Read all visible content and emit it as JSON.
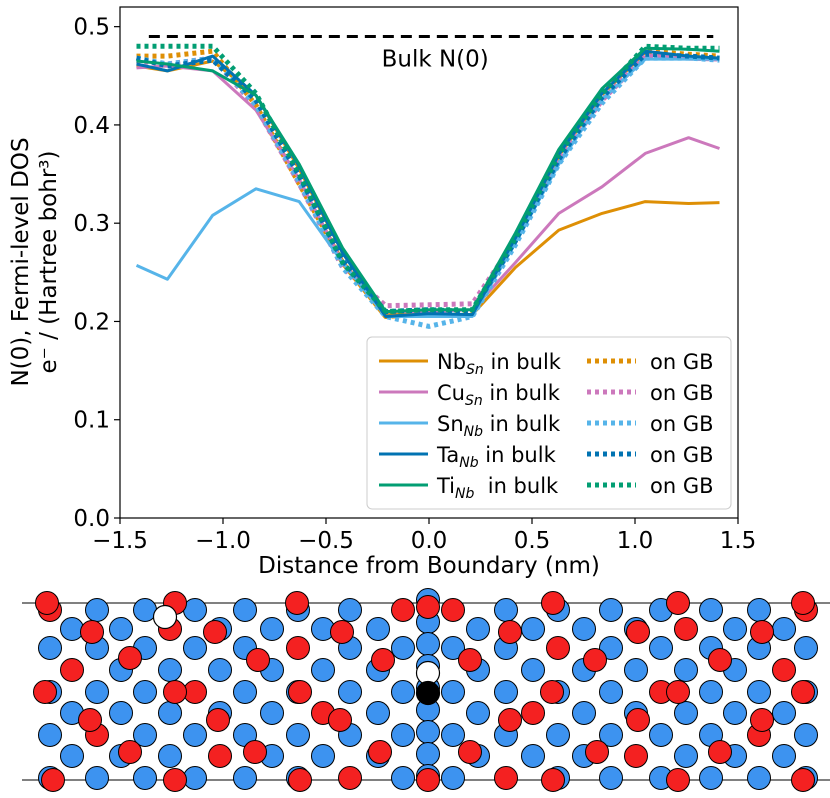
{
  "chart_data": {
    "type": "line",
    "xlabel": "Distance from Boundary (nm)",
    "ylabel_line1": "N(0), Fermi-level DOS",
    "ylabel_line2": "e⁻ / (Hartree bohr³)",
    "xlim": [
      -1.5,
      1.5
    ],
    "ylim": [
      0.0,
      0.52
    ],
    "xticks": [
      -1.5,
      -1.0,
      -0.5,
      0.0,
      0.5,
      1.0,
      1.5
    ],
    "xtick_labels": [
      "−1.5",
      "−1.0",
      "−0.5",
      "0.0",
      "0.5",
      "1.0",
      "1.5"
    ],
    "yticks": [
      0.0,
      0.1,
      0.2,
      0.3,
      0.4,
      0.5
    ],
    "ytick_labels": [
      "0.0",
      "0.1",
      "0.2",
      "0.3",
      "0.4",
      "0.5"
    ],
    "bulk_reference": {
      "label": "Bulk N(0)",
      "y": 0.49,
      "x_range": [
        -1.36,
        1.38
      ],
      "color": "#000000"
    },
    "legend_location": "lower-right",
    "series": [
      {
        "name": "Nb_Sn in bulk",
        "base": "Nb",
        "sub": "Sn",
        "suffix": " in bulk",
        "color": "#de8f05",
        "style": "solid",
        "x": [
          -1.42,
          -1.27,
          -1.05,
          -0.84,
          -0.63,
          -0.42,
          -0.21,
          0.0,
          0.21,
          0.42,
          0.63,
          0.84,
          1.05,
          1.26,
          1.41
        ],
        "y": [
          0.46,
          0.455,
          0.465,
          0.43,
          0.355,
          0.27,
          0.207,
          0.207,
          0.207,
          0.255,
          0.293,
          0.31,
          0.322,
          0.32,
          0.321
        ]
      },
      {
        "name": "Nb_Sn on GB",
        "base": "",
        "sub": "",
        "suffix": "on GB",
        "color": "#de8f05",
        "style": "dotted",
        "x": [
          -1.42,
          -1.27,
          -1.05,
          -0.84,
          -0.63,
          -0.42,
          -0.21,
          0.0,
          0.21,
          0.42,
          0.63,
          0.84,
          1.05,
          1.26,
          1.41
        ],
        "y": [
          0.47,
          0.47,
          0.475,
          0.42,
          0.34,
          0.26,
          0.205,
          0.208,
          0.208,
          0.285,
          0.37,
          0.432,
          0.475,
          0.472,
          0.47
        ]
      },
      {
        "name": "Cu_Sn in bulk",
        "base": "Cu",
        "sub": "Sn",
        "suffix": " in bulk",
        "color": "#cc78bc",
        "style": "solid",
        "x": [
          -1.42,
          -1.27,
          -1.05,
          -0.84,
          -0.63,
          -0.42,
          -0.21,
          0.0,
          0.21,
          0.42,
          0.63,
          0.84,
          1.05,
          1.26,
          1.41
        ],
        "y": [
          0.458,
          0.46,
          0.455,
          0.415,
          0.345,
          0.26,
          0.21,
          0.21,
          0.212,
          0.26,
          0.31,
          0.337,
          0.371,
          0.387,
          0.376
        ]
      },
      {
        "name": "Cu_Sn on GB",
        "base": "",
        "sub": "",
        "suffix": "on GB",
        "color": "#cc78bc",
        "style": "dotted",
        "x": [
          -1.42,
          -1.27,
          -1.05,
          -0.84,
          -0.63,
          -0.42,
          -0.21,
          0.0,
          0.21,
          0.42,
          0.63,
          0.84,
          1.05,
          1.26,
          1.41
        ],
        "y": [
          0.465,
          0.462,
          0.468,
          0.418,
          0.34,
          0.255,
          0.216,
          0.217,
          0.218,
          0.283,
          0.365,
          0.425,
          0.47,
          0.468,
          0.467
        ]
      },
      {
        "name": "Sn_Nb in bulk",
        "base": "Sn",
        "sub": "Nb",
        "suffix": " in bulk",
        "color": "#56b4e9",
        "style": "solid",
        "x": [
          -1.42,
          -1.27,
          -1.05,
          -0.84,
          -0.63,
          -0.42,
          -0.21,
          0.0,
          0.21,
          0.42,
          0.63,
          0.84,
          1.05,
          1.26,
          1.41
        ],
        "y": [
          0.257,
          0.243,
          0.308,
          0.335,
          0.322,
          0.26,
          0.205,
          0.205,
          0.205,
          0.28,
          0.36,
          0.426,
          0.467,
          0.467,
          0.467
        ]
      },
      {
        "name": "Sn_Nb on GB",
        "base": "",
        "sub": "",
        "suffix": "on GB",
        "color": "#56b4e9",
        "style": "dotted",
        "x": [
          -1.42,
          -1.27,
          -1.05,
          -0.84,
          -0.63,
          -0.42,
          -0.21,
          0.0,
          0.21,
          0.42,
          0.63,
          0.84,
          1.05,
          1.26,
          1.41
        ],
        "y": [
          0.468,
          0.462,
          0.468,
          0.42,
          0.342,
          0.255,
          0.205,
          0.195,
          0.205,
          0.278,
          0.36,
          0.422,
          0.468,
          0.468,
          0.466
        ]
      },
      {
        "name": "Ta_Nb in bulk",
        "base": "Ta",
        "sub": "Nb",
        "suffix": " in bulk",
        "color": "#0173b2",
        "style": "solid",
        "x": [
          -1.42,
          -1.27,
          -1.05,
          -0.84,
          -0.63,
          -0.42,
          -0.21,
          0.0,
          0.21,
          0.42,
          0.63,
          0.84,
          1.05,
          1.26,
          1.41
        ],
        "y": [
          0.462,
          0.455,
          0.47,
          0.43,
          0.358,
          0.27,
          0.205,
          0.208,
          0.207,
          0.285,
          0.37,
          0.432,
          0.475,
          0.47,
          0.468
        ]
      },
      {
        "name": "Ta_Nb on GB",
        "base": "",
        "sub": "",
        "suffix": "on GB",
        "color": "#0173b2",
        "style": "dotted",
        "x": [
          -1.42,
          -1.27,
          -1.05,
          -0.84,
          -0.63,
          -0.42,
          -0.21,
          0.0,
          0.21,
          0.42,
          0.63,
          0.84,
          1.05,
          1.26,
          1.41
        ],
        "y": [
          0.468,
          0.46,
          0.466,
          0.425,
          0.348,
          0.262,
          0.21,
          0.212,
          0.21,
          0.282,
          0.365,
          0.428,
          0.472,
          0.47,
          0.468
        ]
      },
      {
        "name": "Ti_Nb in bulk",
        "base": "Ti",
        "sub": "Nb",
        "suffix": "  in bulk",
        "color": "#029e73",
        "style": "solid",
        "x": [
          -1.42,
          -1.27,
          -1.05,
          -0.84,
          -0.63,
          -0.42,
          -0.21,
          0.0,
          0.21,
          0.42,
          0.63,
          0.84,
          1.05,
          1.26,
          1.41
        ],
        "y": [
          0.465,
          0.462,
          0.455,
          0.43,
          0.36,
          0.275,
          0.21,
          0.212,
          0.212,
          0.29,
          0.375,
          0.437,
          0.478,
          0.477,
          0.475
        ]
      },
      {
        "name": "Ti_Nb on GB",
        "base": "",
        "sub": "",
        "suffix": "on GB",
        "color": "#029e73",
        "style": "dotted",
        "x": [
          -1.42,
          -1.27,
          -1.05,
          -0.84,
          -0.63,
          -0.42,
          -0.21,
          0.0,
          0.21,
          0.42,
          0.63,
          0.84,
          1.05,
          1.26,
          1.41
        ],
        "y": [
          0.48,
          0.48,
          0.48,
          0.432,
          0.35,
          0.26,
          0.21,
          0.212,
          0.212,
          0.285,
          0.37,
          0.432,
          0.48,
          0.478,
          0.478
        ]
      }
    ]
  },
  "structure_diagram": {
    "atom_colors": {
      "blue": "#3d93f0",
      "red": "#f42121",
      "vacancy": "#ffffff",
      "solute": "#000000"
    }
  }
}
